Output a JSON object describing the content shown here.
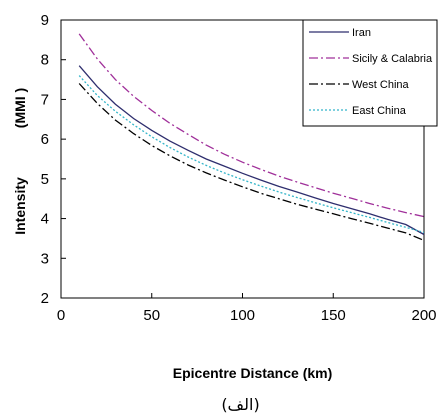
{
  "chart_data": {
    "type": "line",
    "xlabel": "Epicentre Distance (km)",
    "ylabel": "Intensity",
    "ylabel_unit": "(MMI )",
    "xlim": [
      0,
      200
    ],
    "ylim": [
      2,
      9
    ],
    "x_ticks": [
      "0",
      "50",
      "100",
      "150",
      "200"
    ],
    "y_ticks": [
      "2",
      "3",
      "4",
      "5",
      "6",
      "7",
      "8",
      "9"
    ],
    "grid": false,
    "legend_position": "top-right",
    "x": [
      10,
      20,
      30,
      40,
      50,
      60,
      70,
      80,
      90,
      100,
      110,
      120,
      130,
      140,
      150,
      160,
      170,
      180,
      190,
      200
    ],
    "series": [
      {
        "name": "Iran",
        "color": "#2e2e6e",
        "dash": "solid",
        "values": [
          7.85,
          7.32,
          6.88,
          6.52,
          6.22,
          5.95,
          5.72,
          5.5,
          5.32,
          5.14,
          4.97,
          4.81,
          4.67,
          4.52,
          4.38,
          4.25,
          4.12,
          3.98,
          3.85,
          3.6
        ]
      },
      {
        "name": "Sicily & Calabria",
        "color": "#a0309a",
        "dash": "dashdot",
        "values": [
          8.65,
          8.02,
          7.5,
          7.08,
          6.72,
          6.4,
          6.12,
          5.85,
          5.62,
          5.42,
          5.24,
          5.07,
          4.92,
          4.78,
          4.64,
          4.51,
          4.38,
          4.26,
          4.15,
          4.05
        ]
      },
      {
        "name": "West China",
        "color": "#000000",
        "dash": "dashdot",
        "values": [
          7.4,
          6.9,
          6.48,
          6.14,
          5.84,
          5.58,
          5.35,
          5.15,
          4.97,
          4.8,
          4.64,
          4.5,
          4.36,
          4.24,
          4.12,
          4.0,
          3.88,
          3.76,
          3.64,
          3.45
        ]
      },
      {
        "name": "East China",
        "color": "#33b5c9",
        "dash": "dotted",
        "values": [
          7.6,
          7.1,
          6.7,
          6.36,
          6.06,
          5.79,
          5.55,
          5.34,
          5.15,
          4.98,
          4.82,
          4.67,
          4.53,
          4.4,
          4.27,
          4.15,
          4.03,
          3.9,
          3.78,
          3.65
        ]
      }
    ]
  },
  "caption": "(الف)"
}
